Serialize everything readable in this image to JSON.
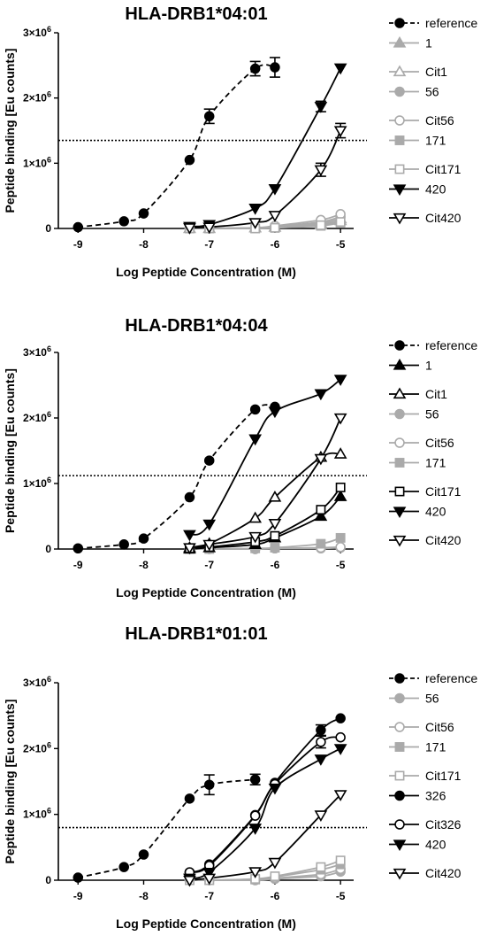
{
  "x_tick_labels": [
    "-9",
    "-8",
    "-7",
    "-6",
    "-5"
  ],
  "chart_data": [
    {
      "type": "scatter",
      "title": "HLA-DRB1*04:01",
      "xlabel": "Log Peptide Concentration (M)",
      "ylabel": "Peptide binding [Eu counts]",
      "xlim": [
        -9.3,
        -4.8
      ],
      "ylim": [
        0,
        3000000
      ],
      "y_tick_labels": [
        "0",
        "1×10⁶",
        "2×10⁶",
        "3×10⁶"
      ],
      "threshold": 1350000,
      "series": [
        {
          "name": "reference",
          "color": "#000000",
          "marker": "circle",
          "fill": true,
          "line": "dashed",
          "x": [
            -9,
            -8.3,
            -8,
            -7.3,
            -7,
            -6.3,
            -6
          ],
          "y": [
            20000,
            110000,
            230000,
            1050000,
            1720000,
            2450000,
            2470000
          ],
          "err": [
            0,
            0,
            0,
            0,
            110000,
            110000,
            150000
          ]
        },
        {
          "name": "1",
          "color": "#aaaaaa",
          "marker": "triangle",
          "fill": true,
          "line": "solid",
          "x": [
            -7.3,
            -7,
            -6.3,
            -6,
            -5.3,
            -5
          ],
          "y": [
            0,
            0,
            10000,
            20000,
            60000,
            120000
          ]
        },
        {
          "name": "Cit1",
          "color": "#aaaaaa",
          "marker": "triangle",
          "fill": false,
          "line": "solid",
          "x": [
            -7.3,
            -7,
            -6.3,
            -6,
            -5.3,
            -5
          ],
          "y": [
            0,
            0,
            10000,
            20000,
            80000,
            150000
          ]
        },
        {
          "name": "56",
          "color": "#aaaaaa",
          "marker": "circle",
          "fill": true,
          "line": "solid",
          "x": [
            -7.3,
            -7,
            -6.3,
            -6,
            -5.3,
            -5
          ],
          "y": [
            0,
            0,
            10000,
            30000,
            100000,
            180000
          ]
        },
        {
          "name": "Cit56",
          "color": "#aaaaaa",
          "marker": "circle",
          "fill": false,
          "line": "solid",
          "x": [
            -7.3,
            -7,
            -6.3,
            -6,
            -5.3,
            -5
          ],
          "y": [
            0,
            0,
            10000,
            40000,
            130000,
            220000
          ]
        },
        {
          "name": "171",
          "color": "#aaaaaa",
          "marker": "square",
          "fill": true,
          "line": "solid",
          "x": [
            -7.3,
            -7,
            -6.3,
            -6,
            -5.3,
            -5
          ],
          "y": [
            0,
            0,
            0,
            10000,
            40000,
            90000
          ]
        },
        {
          "name": "Cit171",
          "color": "#aaaaaa",
          "marker": "square",
          "fill": false,
          "line": "solid",
          "x": [
            -7.3,
            -7,
            -6.3,
            -6,
            -5.3,
            -5
          ],
          "y": [
            0,
            0,
            0,
            10000,
            50000,
            100000
          ]
        },
        {
          "name": "420",
          "color": "#000000",
          "marker": "invtriangle",
          "fill": true,
          "line": "solid",
          "x": [
            -7.3,
            -7,
            -6.3,
            -6,
            -5.3,
            -5
          ],
          "y": [
            30000,
            60000,
            310000,
            610000,
            1870000,
            2460000
          ],
          "err": [
            0,
            0,
            0,
            0,
            80000,
            0
          ]
        },
        {
          "name": "Cit420",
          "color": "#000000",
          "marker": "invtriangle",
          "fill": false,
          "line": "solid",
          "x": [
            -7.3,
            -7,
            -6.3,
            -6,
            -5.3,
            -5
          ],
          "y": [
            10000,
            20000,
            90000,
            200000,
            900000,
            1500000
          ],
          "err": [
            0,
            0,
            0,
            0,
            100000,
            110000
          ]
        }
      ]
    },
    {
      "type": "scatter",
      "title": "HLA-DRB1*04:04",
      "xlabel": "Log Peptide Concentration (M)",
      "ylabel": "Peptide binding [Eu counts]",
      "xlim": [
        -9.3,
        -4.8
      ],
      "ylim": [
        0,
        3000000
      ],
      "y_tick_labels": [
        "0",
        "1×10⁶",
        "2×10⁶",
        "3×10⁶"
      ],
      "threshold": 1120000,
      "series": [
        {
          "name": "reference",
          "color": "#000000",
          "marker": "circle",
          "fill": true,
          "line": "dashed",
          "x": [
            -9,
            -8.3,
            -8,
            -7.3,
            -7,
            -6.3,
            -6
          ],
          "y": [
            10000,
            70000,
            160000,
            790000,
            1350000,
            2130000,
            2170000
          ]
        },
        {
          "name": "1",
          "color": "#000000",
          "marker": "triangle",
          "fill": true,
          "line": "solid",
          "x": [
            -7.3,
            -7,
            -6.3,
            -6,
            -5.3,
            -5
          ],
          "y": [
            0,
            20000,
            70000,
            170000,
            500000,
            800000
          ]
        },
        {
          "name": "Cit1",
          "color": "#000000",
          "marker": "triangle",
          "fill": false,
          "line": "solid",
          "x": [
            -7.3,
            -7,
            -6.3,
            -6,
            -5.3,
            -5
          ],
          "y": [
            20000,
            80000,
            470000,
            790000,
            1400000,
            1450000
          ]
        },
        {
          "name": "56",
          "color": "#aaaaaa",
          "marker": "circle",
          "fill": true,
          "line": "solid",
          "x": [
            -7.3,
            -7,
            -6.3,
            -6,
            -5.3,
            -5
          ],
          "y": [
            0,
            0,
            0,
            10000,
            10000,
            20000
          ]
        },
        {
          "name": "Cit56",
          "color": "#aaaaaa",
          "marker": "circle",
          "fill": false,
          "line": "solid",
          "x": [
            -7.3,
            -7,
            -6.3,
            -6,
            -5.3,
            -5
          ],
          "y": [
            0,
            0,
            0,
            10000,
            20000,
            30000
          ]
        },
        {
          "name": "171",
          "color": "#aaaaaa",
          "marker": "square",
          "fill": true,
          "line": "solid",
          "x": [
            -7.3,
            -7,
            -6.3,
            -6,
            -5.3,
            -5
          ],
          "y": [
            0,
            0,
            10000,
            20000,
            80000,
            170000
          ]
        },
        {
          "name": "Cit171",
          "color": "#000000",
          "marker": "square",
          "fill": false,
          "line": "solid",
          "x": [
            -7.3,
            -7,
            -6.3,
            -6,
            -5.3,
            -5
          ],
          "y": [
            10000,
            30000,
            110000,
            200000,
            600000,
            940000
          ]
        },
        {
          "name": "420",
          "color": "#000000",
          "marker": "invtriangle",
          "fill": true,
          "line": "solid",
          "x": [
            -7.3,
            -7,
            -6.3,
            -6,
            -5.3,
            -5
          ],
          "y": [
            220000,
            380000,
            1680000,
            2100000,
            2370000,
            2590000
          ]
        },
        {
          "name": "Cit420",
          "color": "#000000",
          "marker": "invtriangle",
          "fill": false,
          "line": "solid",
          "x": [
            -7.3,
            -7,
            -6.3,
            -6,
            -5.3,
            -5
          ],
          "y": [
            20000,
            70000,
            190000,
            390000,
            1380000,
            2000000
          ]
        }
      ]
    },
    {
      "type": "scatter",
      "title": "HLA-DRB1*01:01",
      "xlabel": "Log Peptide Concentration (M)",
      "ylabel": "Peptide binding [Eu counts]",
      "xlim": [
        -9.3,
        -4.8
      ],
      "ylim": [
        0,
        3000000
      ],
      "y_tick_labels": [
        "0",
        "1×10⁶",
        "2×10⁶",
        "3×10⁶"
      ],
      "threshold": 800000,
      "series": [
        {
          "name": "reference",
          "color": "#000000",
          "marker": "circle",
          "fill": true,
          "line": "dashed",
          "x": [
            -9,
            -8.3,
            -8,
            -7.3,
            -7,
            -6.3
          ],
          "y": [
            40000,
            200000,
            390000,
            1240000,
            1450000,
            1530000
          ],
          "err": [
            0,
            0,
            0,
            0,
            150000,
            80000
          ]
        },
        {
          "name": "56",
          "color": "#aaaaaa",
          "marker": "circle",
          "fill": true,
          "line": "solid",
          "x": [
            -7.3,
            -7,
            -6.3,
            -6,
            -5.3,
            -5
          ],
          "y": [
            0,
            0,
            0,
            20000,
            60000,
            130000
          ]
        },
        {
          "name": "Cit56",
          "color": "#aaaaaa",
          "marker": "circle",
          "fill": false,
          "line": "solid",
          "x": [
            -7.3,
            -7,
            -6.3,
            -6,
            -5.3,
            -5
          ],
          "y": [
            0,
            0,
            10000,
            30000,
            90000,
            170000
          ]
        },
        {
          "name": "171",
          "color": "#aaaaaa",
          "marker": "square",
          "fill": true,
          "line": "solid",
          "x": [
            -7.3,
            -7,
            -6.3,
            -6,
            -5.3,
            -5
          ],
          "y": [
            0,
            0,
            10000,
            50000,
            160000,
            240000
          ]
        },
        {
          "name": "Cit171",
          "color": "#aaaaaa",
          "marker": "square",
          "fill": false,
          "line": "solid",
          "x": [
            -7.3,
            -7,
            -6.3,
            -6,
            -5.3,
            -5
          ],
          "y": [
            0,
            0,
            20000,
            60000,
            200000,
            300000
          ]
        },
        {
          "name": "326",
          "color": "#000000",
          "marker": "circle",
          "fill": true,
          "line": "solid",
          "x": [
            -7.3,
            -7,
            -6.3,
            -6,
            -5.3,
            -5
          ],
          "y": [
            120000,
            240000,
            990000,
            1480000,
            2280000,
            2460000
          ],
          "err": [
            0,
            0,
            0,
            0,
            80000,
            0
          ]
        },
        {
          "name": "Cit326",
          "color": "#000000",
          "marker": "circle",
          "fill": false,
          "line": "solid",
          "x": [
            -7.3,
            -7,
            -6.3,
            -6,
            -5.3,
            -5
          ],
          "y": [
            120000,
            220000,
            980000,
            1460000,
            2100000,
            2170000
          ],
          "err": [
            0,
            0,
            0,
            0,
            90000,
            0
          ]
        },
        {
          "name": "420",
          "color": "#000000",
          "marker": "invtriangle",
          "fill": true,
          "line": "solid",
          "x": [
            -7.3,
            -7,
            -6.3,
            -6,
            -5.3,
            -5
          ],
          "y": [
            30000,
            120000,
            790000,
            1400000,
            1840000,
            2000000
          ]
        },
        {
          "name": "Cit420",
          "color": "#000000",
          "marker": "invtriangle",
          "fill": false,
          "line": "solid",
          "x": [
            -7.3,
            -7,
            -6.3,
            -6,
            -5.3,
            -5
          ],
          "y": [
            0,
            30000,
            130000,
            270000,
            990000,
            1300000
          ]
        }
      ]
    }
  ]
}
